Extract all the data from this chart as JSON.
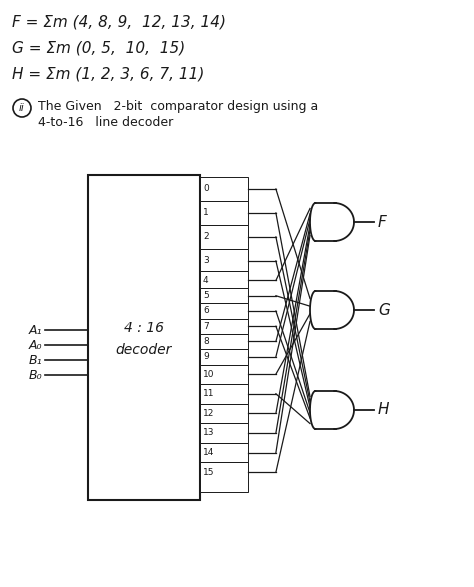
{
  "eq1": "F = Σm (4, 8, 9,  12, 13, 14)",
  "eq2": "G = Σm (0, 5,  10,  15)",
  "eq3": "H = Σm (1, 2, 3, 6, 7, 11)",
  "subtitle_circle": "ii",
  "subtitle_line1": "The Given   2-bit  comparator design using a",
  "subtitle_line2": "4-to-16   line decoder",
  "decoder_label_line1": "4 : 16",
  "decoder_label_line2": "decoder",
  "inputs": [
    "A₁",
    "A₀",
    "B₁",
    "B₀"
  ],
  "gate_F_minterms": [
    4,
    8,
    9,
    12,
    13,
    14
  ],
  "gate_G_minterms": [
    0,
    5,
    10,
    15
  ],
  "gate_H_minterms": [
    1,
    2,
    3,
    6,
    7,
    11
  ],
  "gate_F_label": "F",
  "gate_G_label": "G",
  "gate_H_label": "H",
  "bg_color": "#ffffff",
  "line_color": "#1a1a1a",
  "text_color": "#1a1a1a",
  "eq_fontsize": 11,
  "sub_fontsize": 9,
  "label_fontsize": 9,
  "gate_label_fontsize": 11
}
